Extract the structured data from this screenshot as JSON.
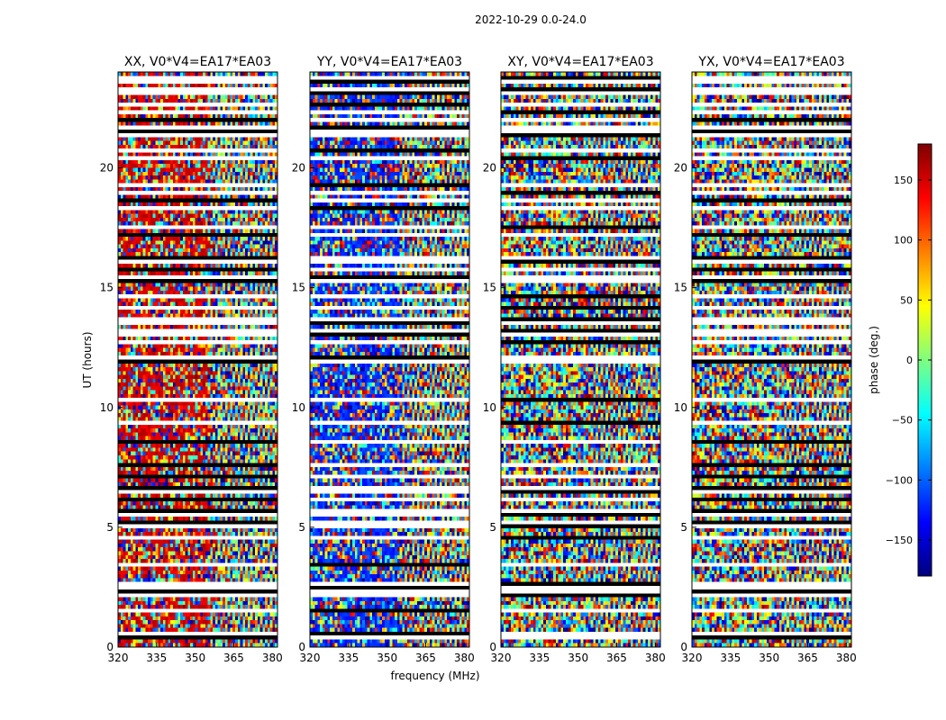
{
  "figure": {
    "suptitle": "2022-10-29 0.0-24.0"
  },
  "colors": {
    "colormap": "jet",
    "colormap_stops": [
      "#00007f",
      "#0000ff",
      "#007fff",
      "#00ffff",
      "#7fff7f",
      "#ffff00",
      "#ff7f00",
      "#ff0000",
      "#7f0000"
    ],
    "flagged_blank": "#ffffff",
    "flagged_dark": "#000000"
  },
  "chart_data": {
    "type": "heatmap",
    "xlabel": "frequency (MHz)",
    "ylabel": "UT (hours)",
    "xlim": [
      320,
      382
    ],
    "ylim": [
      0,
      24
    ],
    "xticks": [
      "320",
      "335",
      "350",
      "365",
      "380"
    ],
    "xtick_values": [
      320,
      335,
      350,
      365,
      380
    ],
    "yticks": [
      "0",
      "5",
      "10",
      "15",
      "20"
    ],
    "ytick_values": [
      0,
      5,
      10,
      15,
      20
    ],
    "colorbar": {
      "label": "phase (deg.)",
      "range": [
        -180,
        180
      ],
      "ticks": [
        "150",
        "100",
        "50",
        "0",
        "−50",
        "−100",
        "−150"
      ],
      "tick_values": [
        150,
        100,
        50,
        0,
        -50,
        -100,
        -150
      ]
    },
    "panels": [
      {
        "title": "XX, V0*V4=EA17*EA03",
        "bias_phase": 150
      },
      {
        "title": "YY, V0*V4=EA17*EA03",
        "bias_phase": -120
      },
      {
        "title": "XY, V0*V4=EA17*EA03",
        "bias_phase": null
      },
      {
        "title": "YX, V0*V4=EA17*EA03",
        "bias_phase": null
      }
    ],
    "flagged_rows_hours": [
      0.3,
      0.4,
      1.5,
      2.1,
      2.2,
      2.3,
      2.4,
      2.5,
      2.6,
      3.3,
      3.4,
      4.5,
      5.0,
      5.1,
      5.5,
      5.6,
      6.1,
      6.4,
      6.5,
      7.1,
      7.5,
      8.5,
      9.3,
      10.2,
      11.9,
      12.0,
      12.6,
      13.0,
      13.1,
      13.5,
      13.6,
      14.1,
      14.5,
      15.2,
      15.3,
      15.6,
      15.7,
      16.0,
      16.2,
      17.1,
      17.5,
      18.3,
      18.6,
      18.9,
      19.2,
      20.3,
      20.7,
      21.2,
      21.5,
      21.6,
      21.9,
      22.2,
      22.6,
      23.0,
      23.2,
      23.5,
      23.7,
      24.0
    ]
  }
}
